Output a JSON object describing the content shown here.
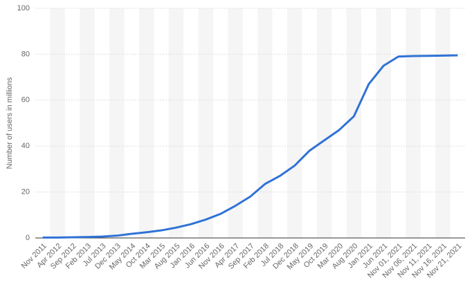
{
  "chart_data": {
    "type": "line",
    "y_label": "Number of users in millions",
    "categories": [
      "Nov 2011",
      "Apr 2012",
      "Sep 2012",
      "Feb 2013",
      "Jul 2013",
      "Dec 2013",
      "May 2014",
      "Oct 2014",
      "Mar 2015",
      "Aug 2015",
      "Jan 2016",
      "Jun 2016",
      "Nov 2016",
      "Apr 2017",
      "Sep 2017",
      "Feb 2018",
      "Jul 2018",
      "Dec 2018",
      "May 2019",
      "Oct 2019",
      "Mar 2020",
      "Aug 2020",
      "Jan 2021",
      "Jun 2021",
      "Nov 01, 2021",
      "Nov 06, 2021",
      "Nov 11, 2021",
      "Nov 16, 2021",
      "Nov 21, 2021"
    ],
    "series": [
      {
        "name": "Users",
        "color": "#2f72d6",
        "values": [
          0.2,
          0.2,
          0.3,
          0.4,
          0.6,
          1.0,
          1.8,
          2.5,
          3.3,
          4.5,
          6.0,
          8.0,
          10.5,
          14,
          18,
          23.5,
          27,
          31.5,
          38,
          42.5,
          47,
          53,
          67,
          75,
          79,
          79.2,
          79.3,
          79.4,
          79.5
        ]
      }
    ],
    "ylim": [
      0,
      100
    ],
    "yticks": [
      0,
      20,
      40,
      60,
      80,
      100
    ],
    "grid": true
  }
}
